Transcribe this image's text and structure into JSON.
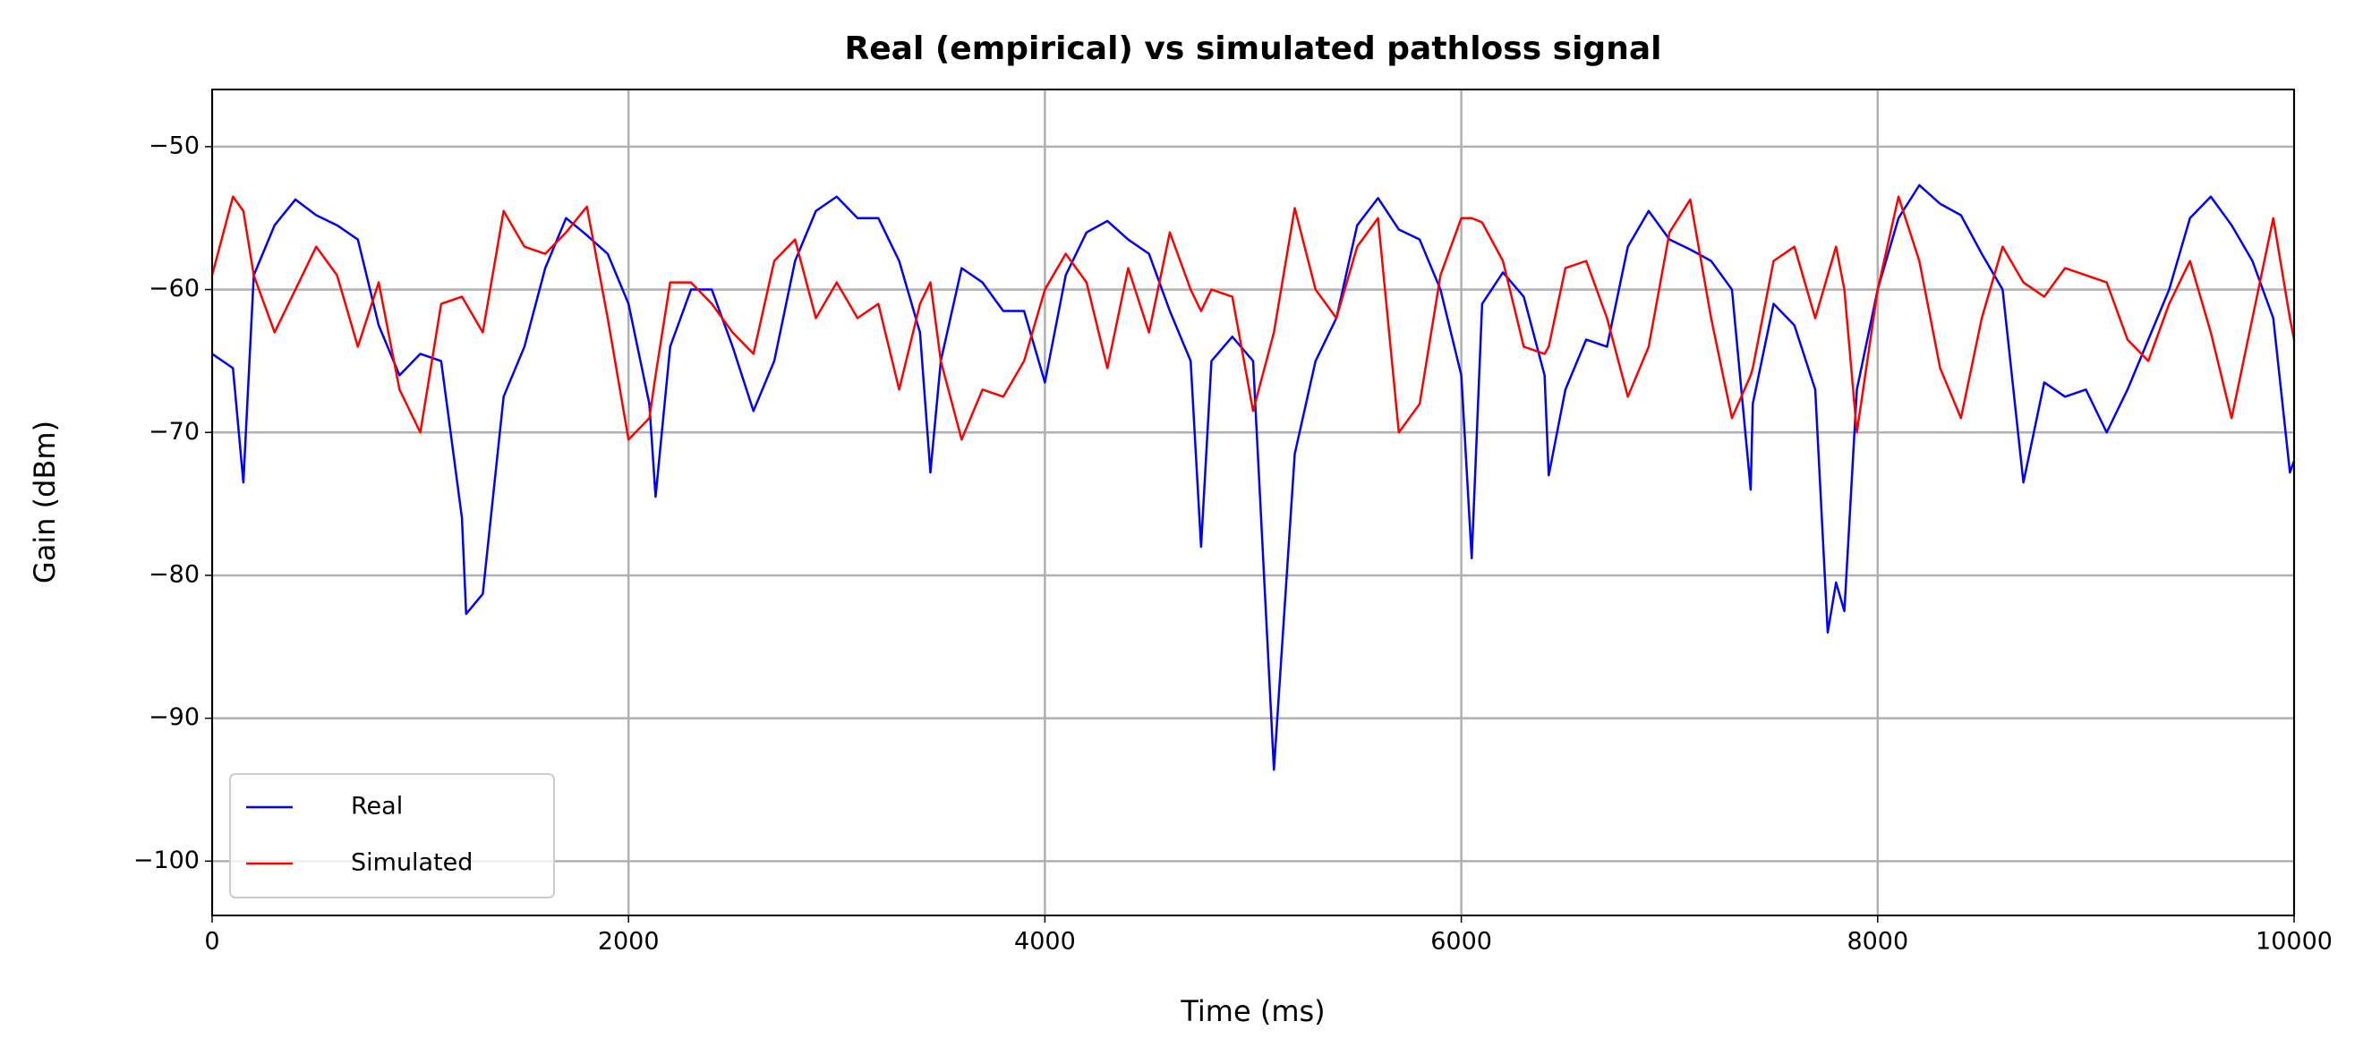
{
  "chart_data": {
    "type": "line",
    "title": "Real (empirical) vs simulated pathloss signal",
    "x_label": "Time (ms)",
    "y_label": "Gain (dBm)",
    "x": [
      0,
      100,
      150,
      200,
      300,
      400,
      500,
      600,
      700,
      800,
      900,
      1000,
      1100,
      1200,
      1220,
      1300,
      1400,
      1500,
      1600,
      1700,
      1800,
      1900,
      2000,
      2100,
      2130,
      2200,
      2300,
      2400,
      2500,
      2600,
      2700,
      2800,
      2900,
      3000,
      3100,
      3200,
      3300,
      3400,
      3450,
      3500,
      3600,
      3700,
      3800,
      3900,
      4000,
      4100,
      4200,
      4300,
      4400,
      4500,
      4600,
      4700,
      4750,
      4800,
      4900,
      5000,
      5100,
      5200,
      5300,
      5400,
      5500,
      5600,
      5700,
      5800,
      5900,
      6000,
      6050,
      6100,
      6200,
      6300,
      6400,
      6420,
      6500,
      6600,
      6700,
      6800,
      6900,
      7000,
      7100,
      7200,
      7300,
      7390,
      7400,
      7500,
      7600,
      7700,
      7760,
      7800,
      7840,
      7900,
      8000,
      8100,
      8200,
      8300,
      8400,
      8500,
      8600,
      8700,
      8800,
      8900,
      9000,
      9100,
      9200,
      9300,
      9400,
      9500,
      9600,
      9700,
      9800,
      9900,
      9980,
      10000
    ],
    "series": [
      {
        "name": "Real",
        "color": "#0000ff",
        "values": [
          -64.5,
          -65.5,
          -73.5,
          -59,
          -55.5,
          -53.7,
          -54.8,
          -55.5,
          -56.5,
          -62.5,
          -66,
          -64.5,
          -65,
          -76,
          -82.7,
          -81.3,
          -67.5,
          -64,
          -58.5,
          -55,
          -56.2,
          -57.5,
          -61,
          -68,
          -74.5,
          -64,
          -60,
          -60,
          -64,
          -68.5,
          -65,
          -58,
          -54.5,
          -53.5,
          -55,
          -55,
          -58,
          -63,
          -72.8,
          -65,
          -58.5,
          -59.5,
          -61.5,
          -61.5,
          -66.5,
          -59,
          -56,
          -55.2,
          -56.5,
          -57.5,
          -61.5,
          -65,
          -78,
          -65,
          -63.3,
          -65,
          -93.6,
          -71.5,
          -65,
          -62,
          -55.5,
          -53.6,
          -55.8,
          -56.5,
          -60,
          -66,
          -78.8,
          -61,
          -58.8,
          -60.5,
          -66,
          -73,
          -67,
          -63.5,
          -64,
          -57,
          -54.5,
          -56.5,
          -57.2,
          -58,
          -60,
          -74,
          -68,
          -61,
          -62.5,
          -67,
          -84,
          -80.5,
          -82.5,
          -67,
          -60,
          -55,
          -52.7,
          -54,
          -54.8,
          -57.5,
          -60,
          -73.5,
          -66.5,
          -67.5,
          -67,
          -70,
          -67,
          -63.5,
          -60,
          -55,
          -53.5,
          -55.5,
          -58,
          -62,
          -72.8,
          -72
        ]
      },
      {
        "name": "Simulated",
        "color": "#ff0000",
        "values": [
          -59,
          -53.5,
          -54.5,
          -59,
          -63,
          -60,
          -57,
          -59,
          -64,
          -59.5,
          -67,
          -70,
          -61,
          -60.5,
          -61,
          -63,
          -54.5,
          -57,
          -57.5,
          -56,
          -54.2,
          -62,
          -70.5,
          -69,
          -66,
          -59.5,
          -59.5,
          -61,
          -63,
          -64.5,
          -58,
          -56.5,
          -62,
          -59.5,
          -62,
          -61,
          -67,
          -61,
          -59.5,
          -65,
          -70.5,
          -67,
          -67.5,
          -65,
          -60,
          -57.5,
          -59.5,
          -65.5,
          -58.5,
          -63,
          -56,
          -60,
          -61.5,
          -60,
          -60.5,
          -68.5,
          -63,
          -54.3,
          -60,
          -62,
          -57,
          -55,
          -70,
          -68,
          -59,
          -55,
          -55,
          -55.3,
          -58,
          -64,
          -64.5,
          -64,
          -58.5,
          -58,
          -62,
          -67.5,
          -64,
          -56,
          -53.7,
          -62,
          -69,
          -66,
          -65.5,
          -58,
          -57,
          -62,
          -59,
          -57,
          -60,
          -70,
          -60,
          -53.5,
          -58,
          -65.5,
          -69,
          -62,
          -57,
          -59.5,
          -60.5,
          -58.5,
          -59,
          -59.5,
          -63.5,
          -65,
          -61,
          -58,
          -63,
          -69,
          -62,
          -55,
          -62,
          -63.5
        ]
      }
    ],
    "xlim": [
      0,
      10000
    ],
    "ylim": [
      -103.8,
      -46
    ],
    "xticks": [
      0,
      2000,
      4000,
      6000,
      8000,
      10000
    ],
    "yticks": [
      {
        "value": -50,
        "label": "−50"
      },
      {
        "value": -60,
        "label": "−60"
      },
      {
        "value": -70,
        "label": "−70"
      },
      {
        "value": -80,
        "label": "−80"
      },
      {
        "value": -90,
        "label": "−90"
      },
      {
        "value": -100,
        "label": "−100"
      }
    ],
    "grid": true,
    "legend": "lower left"
  }
}
